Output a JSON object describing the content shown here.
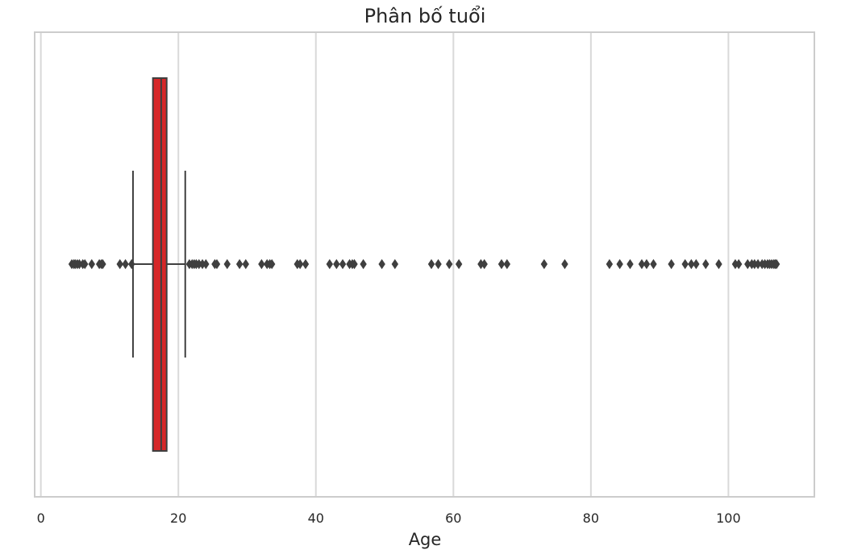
{
  "chart_data": {
    "type": "box",
    "title": "Phân bố tuổi",
    "xlabel": "Age",
    "ylabel": "",
    "xlim": [
      -0.9,
      112.5
    ],
    "xticks": [
      0,
      20,
      40,
      60,
      80,
      100
    ],
    "xtick_labels": [
      "0",
      "20",
      "40",
      "60",
      "80",
      "100"
    ],
    "grid": true,
    "box": {
      "q1": 16.3,
      "median": 17.5,
      "q3": 18.3,
      "whisker_low": 13.4,
      "whisker_high": 21.0,
      "box_color": "#d62728",
      "line_color": "#3f3f3f"
    },
    "outliers": [
      4.5,
      4.8,
      5.0,
      5.3,
      5.6,
      6.1,
      6.4,
      7.4,
      8.5,
      8.8,
      9.0,
      11.5,
      12.3,
      13.2,
      21.6,
      22.0,
      22.3,
      22.6,
      23.0,
      23.5,
      24.0,
      25.3,
      25.6,
      27.1,
      28.9,
      29.8,
      32.1,
      32.9,
      33.3,
      33.6,
      37.3,
      37.7,
      38.5,
      42.0,
      43.0,
      43.9,
      44.9,
      45.3,
      45.6,
      46.9,
      49.6,
      51.5,
      56.8,
      57.8,
      59.4,
      60.8,
      64.0,
      64.5,
      67.0,
      67.8,
      73.2,
      76.2,
      82.7,
      84.2,
      85.7,
      87.4,
      88.1,
      89.1,
      91.7,
      93.7,
      94.6,
      95.3,
      96.7,
      98.6,
      101.0,
      101.5,
      102.8,
      103.4,
      103.8,
      104.3,
      104.9,
      105.3,
      105.7,
      106.0,
      106.3,
      106.6,
      106.8,
      107.0
    ]
  },
  "colors": {
    "grid": "#d9d9d9",
    "frame": "#cccccc",
    "outlier": "#3f3f3f"
  }
}
